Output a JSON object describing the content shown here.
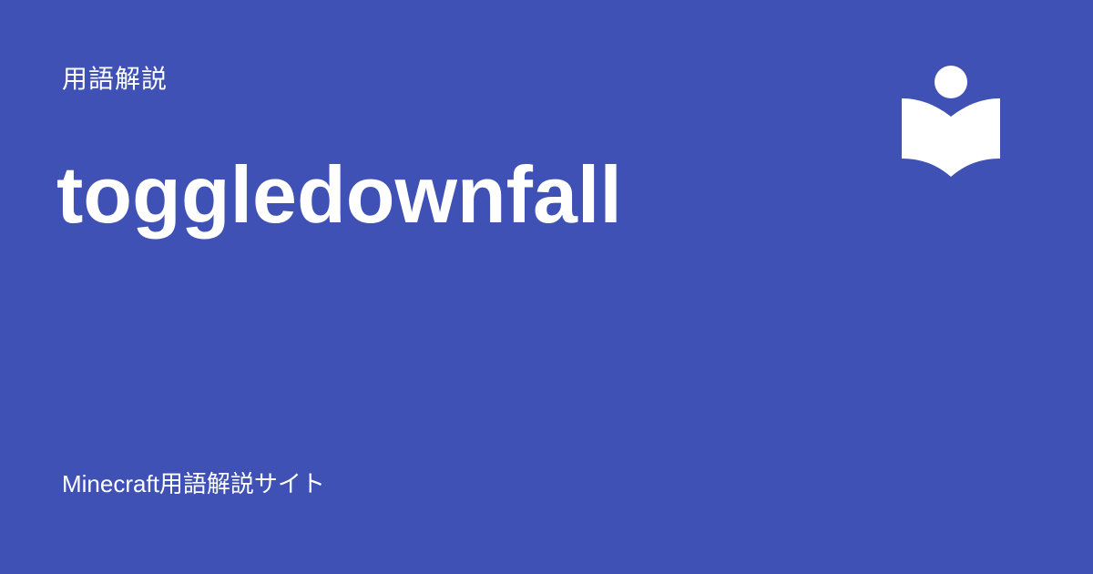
{
  "card": {
    "category": "用語解説",
    "title": "toggledownfall",
    "site_name": "Minecraft用語解説サイト",
    "logo_icon": "reader-book-icon",
    "background_color": "#3f51b5",
    "text_color": "#ffffff"
  }
}
